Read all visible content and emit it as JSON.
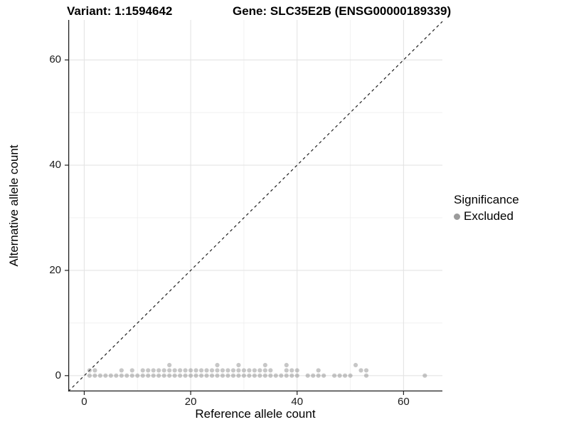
{
  "chart_data": {
    "type": "scatter",
    "titles": {
      "left": "Variant: 1:1594642",
      "right": "Gene: SLC35E2B (ENSG00000189339)"
    },
    "xlabel": "Reference allele count",
    "ylabel": "Alternative allele count",
    "xlim": [
      -3.0,
      67.3
    ],
    "ylim": [
      -3.0,
      67.6
    ],
    "x_ticks": [
      0,
      20,
      40,
      60
    ],
    "y_ticks": [
      0,
      20,
      40,
      60
    ],
    "x_minor_gridlines": [
      10,
      30,
      50
    ],
    "y_minor_gridlines": [
      10,
      30,
      50
    ],
    "grid": true,
    "legend": {
      "title": "Significance",
      "position": "right",
      "entries": [
        {
          "label": "Excluded",
          "color": "#9b9b9b"
        }
      ]
    },
    "identity_line": {
      "style": "dashed",
      "from": [
        -3,
        -3
      ],
      "to": [
        67.3,
        67.3
      ],
      "color": "#1f1f1f"
    },
    "series": [
      {
        "name": "Excluded",
        "color": "#7a7a7a",
        "alpha": 0.42,
        "points": [
          [
            1,
            0
          ],
          [
            2,
            0
          ],
          [
            3,
            0
          ],
          [
            4,
            0
          ],
          [
            5,
            0
          ],
          [
            6,
            0
          ],
          [
            7,
            0
          ],
          [
            8,
            0
          ],
          [
            9,
            0
          ],
          [
            10,
            0
          ],
          [
            11,
            0
          ],
          [
            12,
            0
          ],
          [
            13,
            0
          ],
          [
            14,
            0
          ],
          [
            15,
            0
          ],
          [
            16,
            0
          ],
          [
            17,
            0
          ],
          [
            18,
            0
          ],
          [
            19,
            0
          ],
          [
            20,
            0
          ],
          [
            21,
            0
          ],
          [
            22,
            0
          ],
          [
            23,
            0
          ],
          [
            24,
            0
          ],
          [
            25,
            0
          ],
          [
            26,
            0
          ],
          [
            27,
            0
          ],
          [
            28,
            0
          ],
          [
            29,
            0
          ],
          [
            30,
            0
          ],
          [
            31,
            0
          ],
          [
            32,
            0
          ],
          [
            33,
            0
          ],
          [
            34,
            0
          ],
          [
            35,
            0
          ],
          [
            36,
            0
          ],
          [
            37,
            0
          ],
          [
            38,
            0
          ],
          [
            39,
            0
          ],
          [
            40,
            0
          ],
          [
            42,
            0
          ],
          [
            43,
            0
          ],
          [
            44,
            0
          ],
          [
            45,
            0
          ],
          [
            47,
            0
          ],
          [
            48,
            0
          ],
          [
            49,
            0
          ],
          [
            50,
            0
          ],
          [
            53,
            0
          ],
          [
            64,
            0
          ],
          [
            1,
            1
          ],
          [
            2,
            1
          ],
          [
            7,
            1
          ],
          [
            9,
            1
          ],
          [
            11,
            1
          ],
          [
            12,
            1
          ],
          [
            13,
            1
          ],
          [
            14,
            1
          ],
          [
            15,
            1
          ],
          [
            16,
            1
          ],
          [
            17,
            1
          ],
          [
            18,
            1
          ],
          [
            19,
            1
          ],
          [
            20,
            1
          ],
          [
            21,
            1
          ],
          [
            22,
            1
          ],
          [
            23,
            1
          ],
          [
            24,
            1
          ],
          [
            25,
            1
          ],
          [
            26,
            1
          ],
          [
            27,
            1
          ],
          [
            28,
            1
          ],
          [
            29,
            1
          ],
          [
            30,
            1
          ],
          [
            31,
            1
          ],
          [
            32,
            1
          ],
          [
            33,
            1
          ],
          [
            34,
            1
          ],
          [
            35,
            1
          ],
          [
            38,
            1
          ],
          [
            39,
            1
          ],
          [
            40,
            1
          ],
          [
            44,
            1
          ],
          [
            52,
            1
          ],
          [
            53,
            1
          ],
          [
            16,
            2
          ],
          [
            25,
            2
          ],
          [
            29,
            2
          ],
          [
            34,
            2
          ],
          [
            38,
            2
          ],
          [
            51,
            2
          ]
        ]
      }
    ],
    "style": {
      "background": "#ffffff",
      "grid_major_color": "#e4e4e4",
      "grid_minor_color": "#f0f0f0",
      "axis_line_color": "#1f1f1f",
      "point_radius_px": 3.1
    }
  }
}
